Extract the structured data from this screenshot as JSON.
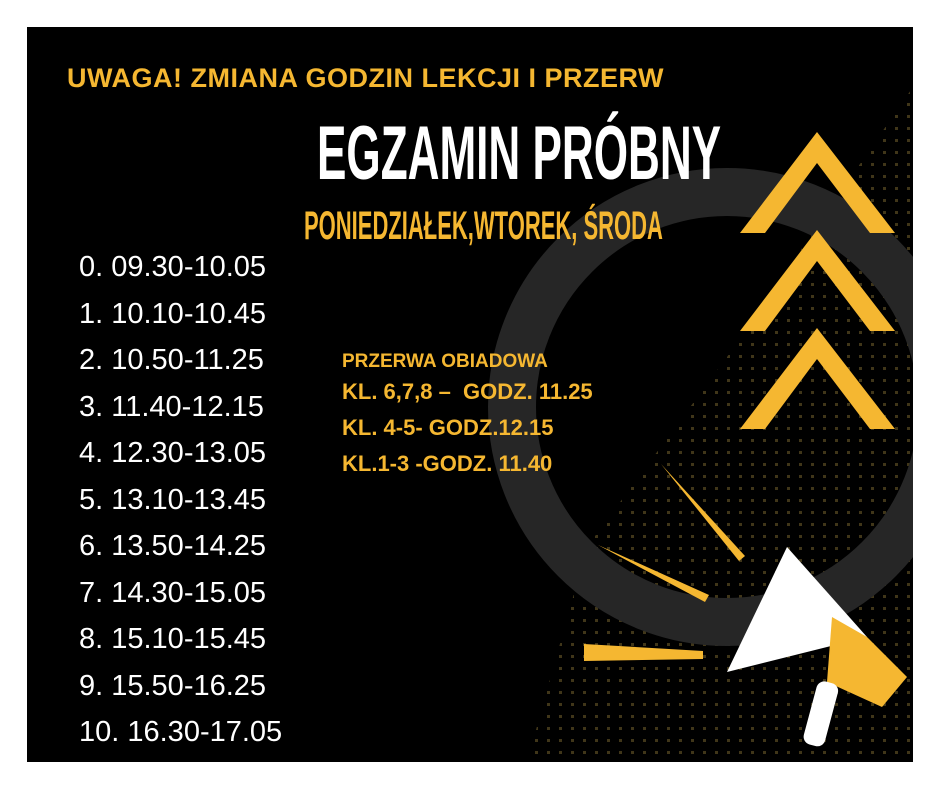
{
  "headline": "UWAGA! ZMIANA GODZIN LEKCJI I PRZERW",
  "title": "EGZAMIN PRÓBNY",
  "days": "PONIEDZIAŁEK,WTOREK, ŚRODA",
  "lessons": [
    "0. 09.30-10.05",
    "1. 10.10-10.45",
    "2. 10.50-11.25",
    "3. 11.40-12.15",
    "4. 12.30-13.05",
    "5. 13.10-13.45",
    "6. 13.50-14.25",
    "7. 14.30-15.05",
    "8. 15.10-15.45",
    "9. 15.50-16.25",
    "10. 16.30-17.05"
  ],
  "lunch": {
    "heading": "PRZERWA OBIADOWA",
    "rows": [
      "KL. 6,7,8 –  GODZ. 11.25",
      "KL. 4-5- GODZ.12.15",
      "KL.1-3 -GODZ. 11.40"
    ]
  },
  "colors": {
    "background": "#000000",
    "accent": "#f5b731",
    "text": "#ffffff"
  },
  "icons": [
    "chevron-up-icon",
    "megaphone-icon"
  ]
}
